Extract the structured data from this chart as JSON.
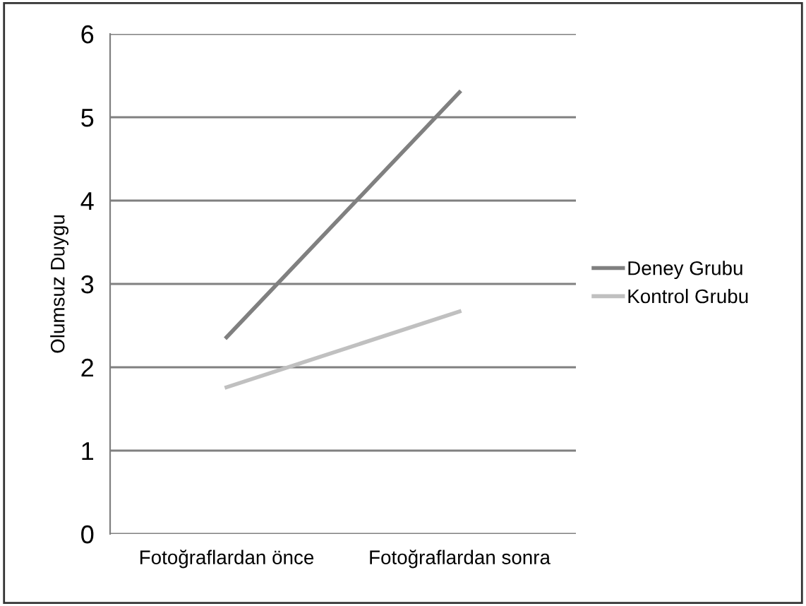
{
  "chart_data": {
    "type": "line",
    "ylabel": "Olumsuz Duygu",
    "categories": [
      "Fotoğraflardan önce",
      "Fotoğraflardan sonra"
    ],
    "series": [
      {
        "name": "Deney Grubu",
        "color": "#808080",
        "values": [
          2.36,
          5.3
        ]
      },
      {
        "name": "Kontrol Grubu",
        "color": "#c0c0c0",
        "values": [
          1.76,
          2.67
        ]
      }
    ],
    "ylim": [
      0,
      6
    ],
    "yticks": [
      0,
      1,
      2,
      3,
      4,
      5,
      6
    ],
    "grid": "y",
    "legend": "right",
    "marker": "none",
    "line_style": "solid"
  }
}
